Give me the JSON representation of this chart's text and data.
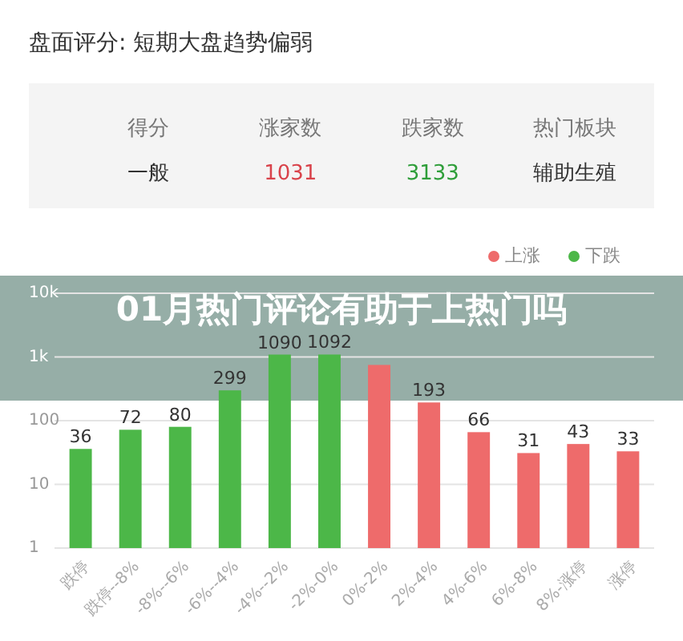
{
  "chart_data": [
    {
      "type": "other",
      "title": "盘面评分: 短期大盘趋势偏弱",
      "categories": [
        "得分",
        "涨家数",
        "跌家数",
        "热门板块"
      ],
      "value_labels": [
        "一般",
        "1031",
        "3133",
        "辅助生殖"
      ],
      "colors": [
        "#333333",
        "#d9434b",
        "#2f9e3a",
        "#333333"
      ]
    },
    {
      "type": "bar",
      "title": "01月热门评论有助于上热门吗",
      "categories": [
        "跌停",
        "跌停--8%",
        "-8%--6%",
        "-6%--4%",
        "-4%--2%",
        "-2%-0%",
        "0%-2%",
        "2%-4%",
        "4%-6%",
        "6%-8%",
        "8%-涨停",
        "涨停"
      ],
      "log": true,
      "ylim": [
        1,
        10000
      ],
      "yticks": [
        1,
        10,
        100,
        {
          "value": 1000,
          "label": "1k"
        },
        {
          "value": 10000,
          "label": "10k"
        }
      ],
      "grid": "y",
      "legend": "top right",
      "series": [
        {
          "name": "上涨",
          "color": "#ee6b6b",
          "values": [
            null,
            null,
            null,
            null,
            null,
            null,
            750,
            193,
            66,
            31,
            43,
            33
          ],
          "value_labels": [
            null,
            null,
            null,
            null,
            null,
            null,
            null,
            "193",
            "66",
            "31",
            "43",
            "33"
          ]
        },
        {
          "name": "下跌",
          "color": "#4cb748",
          "values": [
            36,
            72,
            80,
            299,
            1090,
            1092,
            null,
            null,
            null,
            null,
            null,
            null
          ],
          "value_labels": [
            "36",
            "72",
            "80",
            "299",
            "1090",
            "1092",
            null,
            null,
            null,
            null,
            null,
            null
          ]
        }
      ]
    }
  ]
}
